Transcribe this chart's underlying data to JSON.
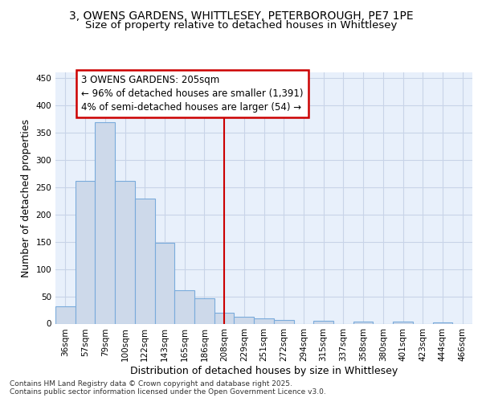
{
  "title_line1": "3, OWENS GARDENS, WHITTLESEY, PETERBOROUGH, PE7 1PE",
  "title_line2": "Size of property relative to detached houses in Whittlesey",
  "xlabel": "Distribution of detached houses by size in Whittlesey",
  "ylabel": "Number of detached properties",
  "categories": [
    "36sqm",
    "57sqm",
    "79sqm",
    "100sqm",
    "122sqm",
    "143sqm",
    "165sqm",
    "186sqm",
    "208sqm",
    "229sqm",
    "251sqm",
    "272sqm",
    "294sqm",
    "315sqm",
    "337sqm",
    "358sqm",
    "380sqm",
    "401sqm",
    "423sqm",
    "444sqm",
    "466sqm"
  ],
  "values": [
    32,
    262,
    368,
    261,
    229,
    148,
    61,
    46,
    20,
    13,
    10,
    6,
    0,
    5,
    0,
    3,
    0,
    3,
    0,
    2,
    0
  ],
  "bar_color": "#cdd9ea",
  "bar_edge_color": "#7aabdb",
  "grid_color": "#c8d4e8",
  "background_color": "#e8f0fb",
  "vline_x_index": 8,
  "vline_color": "#cc0000",
  "annotation_text": "3 OWENS GARDENS: 205sqm\n← 96% of detached houses are smaller (1,391)\n4% of semi-detached houses are larger (54) →",
  "annotation_box_color": "#cc0000",
  "ylim": [
    0,
    460
  ],
  "yticks": [
    0,
    50,
    100,
    150,
    200,
    250,
    300,
    350,
    400,
    450
  ],
  "footer_text": "Contains HM Land Registry data © Crown copyright and database right 2025.\nContains public sector information licensed under the Open Government Licence v3.0.",
  "title_fontsize": 10,
  "subtitle_fontsize": 9.5,
  "axis_label_fontsize": 9,
  "tick_fontsize": 7.5,
  "annotation_fontsize": 8.5
}
